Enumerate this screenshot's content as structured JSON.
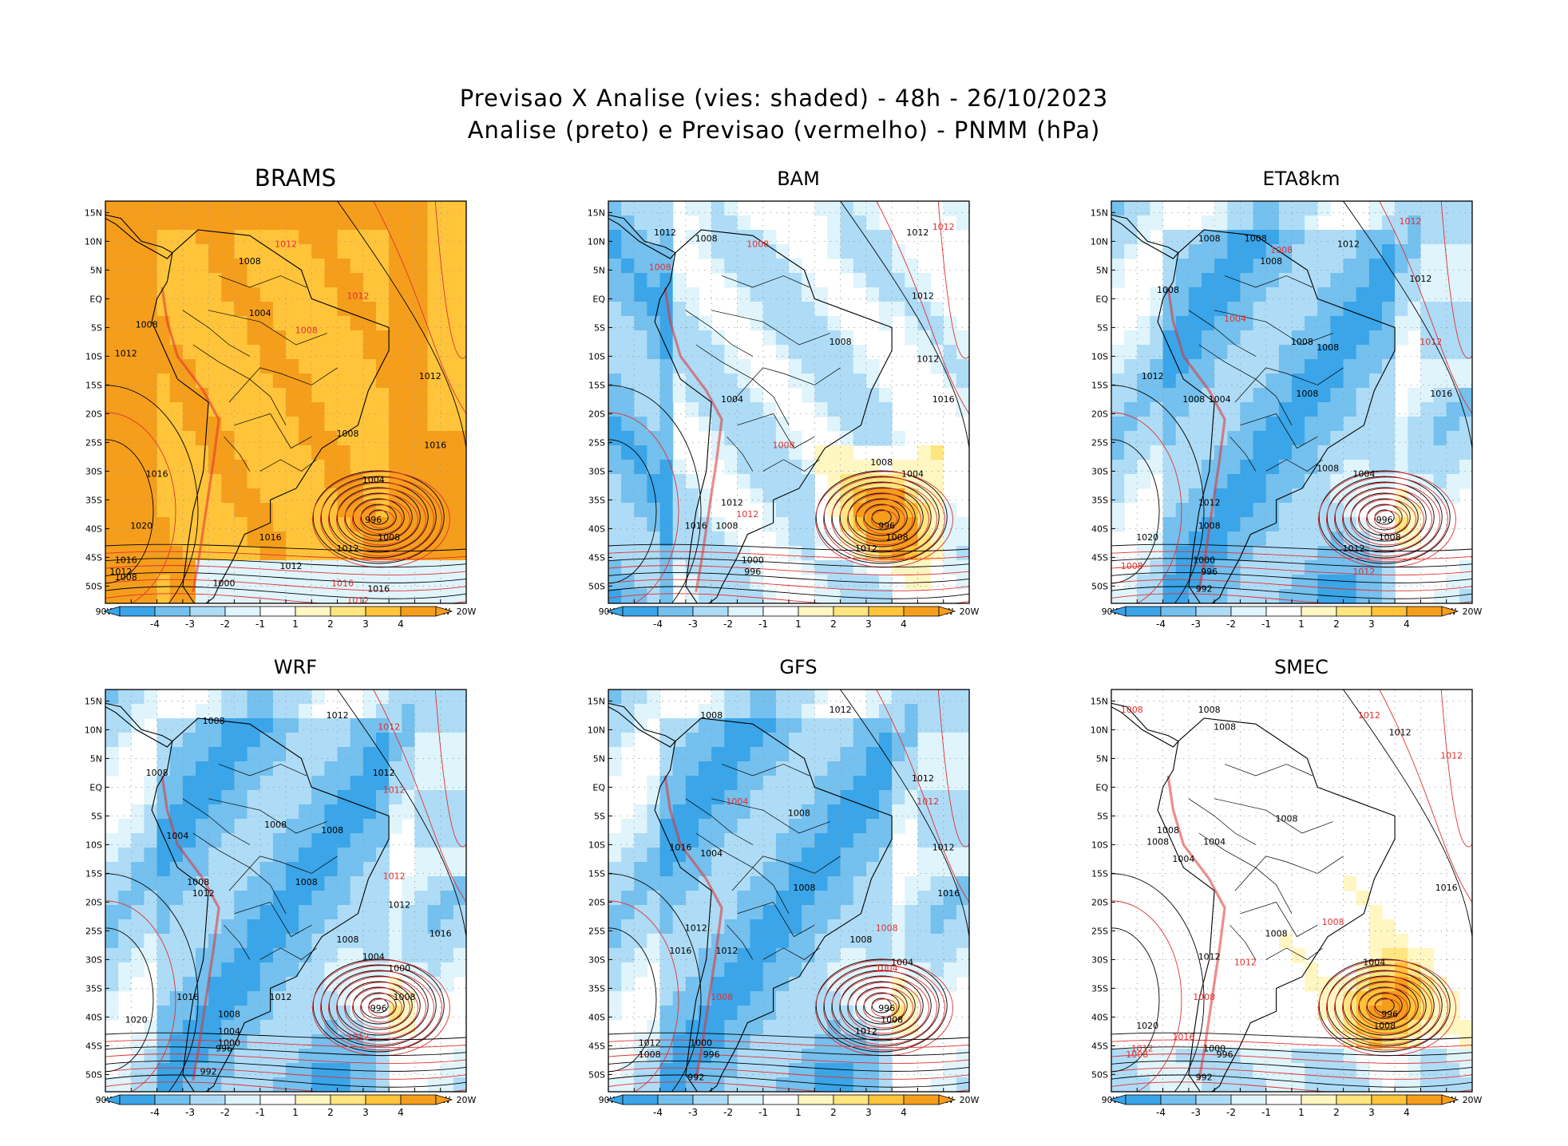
{
  "title_line1": "Previsao X Analise (vies: shaded) - 48h - 26/10/2023",
  "title_line2": "Analise (preto) e Previsao (vermelho) - PNMM (hPa)",
  "colors": {
    "neg4": "#3aa5e8",
    "neg3": "#74c0ee",
    "neg2": "#aedcf6",
    "neg1": "#dff4fb",
    "zero": "#ffffff",
    "pos1": "#fff6c2",
    "pos2": "#ffe580",
    "pos3": "#ffc43a",
    "pos4": "#f59e1c",
    "analysis_contour": "#000000",
    "forecast_contour": "#e03030"
  },
  "lat_ticks": [
    "15N",
    "10N",
    "5N",
    "EQ",
    "5S",
    "10S",
    "15S",
    "20S",
    "25S",
    "30S",
    "35S",
    "40S",
    "45S",
    "50S"
  ],
  "lon_ticks": [
    "90W",
    "85W",
    "80W",
    "75W",
    "70W",
    "65W",
    "60W",
    "55W",
    "50W",
    "45W",
    "40W",
    "35W",
    "30W",
    "25W",
    "20W"
  ],
  "colorbar_labels": [
    "-4",
    "-3",
    "-2",
    "-1",
    "1",
    "2",
    "3",
    "4"
  ],
  "panels": [
    {
      "name": "BRAMS",
      "bias": "warm",
      "labels": [
        {
          "t": "1008",
          "c": "k",
          "lon": -62,
          "lat": 6
        },
        {
          "t": "1004",
          "c": "k",
          "lon": -60,
          "lat": -3
        },
        {
          "t": "1008",
          "c": "k",
          "lon": -82,
          "lat": -5
        },
        {
          "t": "1012",
          "c": "k",
          "lon": -86,
          "lat": -10
        },
        {
          "t": "1008",
          "c": "r",
          "lon": -51,
          "lat": -6
        },
        {
          "t": "1012",
          "c": "r",
          "lon": -55,
          "lat": 9
        },
        {
          "t": "1012",
          "c": "r",
          "lon": -41,
          "lat": 0
        },
        {
          "t": "1012",
          "c": "k",
          "lon": -27,
          "lat": -14
        },
        {
          "t": "1016",
          "c": "k",
          "lon": -26,
          "lat": -26
        },
        {
          "t": "1008",
          "c": "k",
          "lon": -43,
          "lat": -24
        },
        {
          "t": "1004",
          "c": "k",
          "lon": -38,
          "lat": -32
        },
        {
          "t": "996",
          "c": "k",
          "lon": -38,
          "lat": -39
        },
        {
          "t": "1008",
          "c": "k",
          "lon": -35,
          "lat": -42
        },
        {
          "t": "1012",
          "c": "k",
          "lon": -43,
          "lat": -44
        },
        {
          "t": "1016",
          "c": "k",
          "lon": -80,
          "lat": -31
        },
        {
          "t": "1020",
          "c": "k",
          "lon": -83,
          "lat": -40
        },
        {
          "t": "1016",
          "c": "k",
          "lon": -86,
          "lat": -46
        },
        {
          "t": "1012",
          "c": "k",
          "lon": -87,
          "lat": -48
        },
        {
          "t": "1008",
          "c": "k",
          "lon": -86,
          "lat": -49
        },
        {
          "t": "1000",
          "c": "k",
          "lon": -67,
          "lat": -50
        },
        {
          "t": "1016",
          "c": "r",
          "lon": -44,
          "lat": -50
        },
        {
          "t": "1016",
          "c": "k",
          "lon": -37,
          "lat": -51
        },
        {
          "t": "1012",
          "c": "r",
          "lon": -41,
          "lat": -53
        },
        {
          "t": "1012",
          "c": "k",
          "lon": -54,
          "lat": -47
        },
        {
          "t": "1016",
          "c": "k",
          "lon": -58,
          "lat": -42
        }
      ]
    },
    {
      "name": "BAM",
      "bias": "mixed",
      "labels": [
        {
          "t": "1008",
          "c": "k",
          "lon": -71,
          "lat": 10
        },
        {
          "t": "1012",
          "c": "k",
          "lon": -79,
          "lat": 11
        },
        {
          "t": "1008",
          "c": "r",
          "lon": -61,
          "lat": 9
        },
        {
          "t": "1008",
          "c": "r",
          "lon": -80,
          "lat": 5
        },
        {
          "t": "1012",
          "c": "k",
          "lon": -30,
          "lat": 11
        },
        {
          "t": "1012",
          "c": "r",
          "lon": -25,
          "lat": 12
        },
        {
          "t": "1012",
          "c": "k",
          "lon": -29,
          "lat": 0
        },
        {
          "t": "1008",
          "c": "k",
          "lon": -45,
          "lat": -8
        },
        {
          "t": "1012",
          "c": "k",
          "lon": -28,
          "lat": -11
        },
        {
          "t": "1004",
          "c": "k",
          "lon": -66,
          "lat": -18
        },
        {
          "t": "1016",
          "c": "k",
          "lon": -25,
          "lat": -18
        },
        {
          "t": "1008",
          "c": "k",
          "lon": -37,
          "lat": -29
        },
        {
          "t": "1004",
          "c": "k",
          "lon": -31,
          "lat": -31
        },
        {
          "t": "996",
          "c": "k",
          "lon": -36,
          "lat": -40
        },
        {
          "t": "1008",
          "c": "k",
          "lon": -34,
          "lat": -42
        },
        {
          "t": "1012",
          "c": "k",
          "lon": -40,
          "lat": -44
        },
        {
          "t": "1012",
          "c": "k",
          "lon": -66,
          "lat": -36
        },
        {
          "t": "1008",
          "c": "k",
          "lon": -67,
          "lat": -40
        },
        {
          "t": "1000",
          "c": "k",
          "lon": -62,
          "lat": -46
        },
        {
          "t": "996",
          "c": "k",
          "lon": -62,
          "lat": -48
        },
        {
          "t": "1016",
          "c": "k",
          "lon": -73,
          "lat": -40
        },
        {
          "t": "1008",
          "c": "r",
          "lon": -56,
          "lat": -26
        },
        {
          "t": "1012",
          "c": "r",
          "lon": -63,
          "lat": -38
        }
      ]
    },
    {
      "name": "ETA8km",
      "bias": "cool",
      "labels": [
        {
          "t": "1008",
          "c": "k",
          "lon": -71,
          "lat": 10
        },
        {
          "t": "1008",
          "c": "k",
          "lon": -62,
          "lat": 10
        },
        {
          "t": "1012",
          "c": "k",
          "lon": -44,
          "lat": 9
        },
        {
          "t": "1012",
          "c": "r",
          "lon": -32,
          "lat": 13
        },
        {
          "t": "1008",
          "c": "r",
          "lon": -57,
          "lat": 8
        },
        {
          "t": "1012",
          "c": "k",
          "lon": -30,
          "lat": 3
        },
        {
          "t": "1008",
          "c": "k",
          "lon": -59,
          "lat": 6
        },
        {
          "t": "1008",
          "c": "k",
          "lon": -79,
          "lat": 1
        },
        {
          "t": "1004",
          "c": "r",
          "lon": -66,
          "lat": -4
        },
        {
          "t": "1008",
          "c": "k",
          "lon": -53,
          "lat": -8
        },
        {
          "t": "1008",
          "c": "k",
          "lon": -48,
          "lat": -9
        },
        {
          "t": "1012",
          "c": "r",
          "lon": -28,
          "lat": -8
        },
        {
          "t": "1012",
          "c": "k",
          "lon": -82,
          "lat": -14
        },
        {
          "t": "1008",
          "c": "k",
          "lon": -74,
          "lat": -18
        },
        {
          "t": "1004",
          "c": "k",
          "lon": -69,
          "lat": -18
        },
        {
          "t": "1008",
          "c": "k",
          "lon": -52,
          "lat": -17
        },
        {
          "t": "1016",
          "c": "k",
          "lon": -26,
          "lat": -17
        },
        {
          "t": "1008",
          "c": "k",
          "lon": -48,
          "lat": -30
        },
        {
          "t": "1004",
          "c": "k",
          "lon": -41,
          "lat": -31
        },
        {
          "t": "996",
          "c": "k",
          "lon": -37,
          "lat": -39
        },
        {
          "t": "1008",
          "c": "k",
          "lon": -36,
          "lat": -42
        },
        {
          "t": "1012",
          "c": "k",
          "lon": -43,
          "lat": -44
        },
        {
          "t": "1012",
          "c": "k",
          "lon": -71,
          "lat": -36
        },
        {
          "t": "1008",
          "c": "k",
          "lon": -71,
          "lat": -40
        },
        {
          "t": "1020",
          "c": "k",
          "lon": -83,
          "lat": -42
        },
        {
          "t": "1000",
          "c": "k",
          "lon": -72,
          "lat": -46
        },
        {
          "t": "996",
          "c": "k",
          "lon": -71,
          "lat": -48
        },
        {
          "t": "992",
          "c": "k",
          "lon": -72,
          "lat": -51
        },
        {
          "t": "1008",
          "c": "r",
          "lon": -86,
          "lat": -47
        },
        {
          "t": "1012",
          "c": "r",
          "lon": -41,
          "lat": -48
        }
      ]
    },
    {
      "name": "WRF",
      "bias": "cool",
      "labels": [
        {
          "t": "1012",
          "c": "k",
          "lon": -45,
          "lat": 12
        },
        {
          "t": "1012",
          "c": "r",
          "lon": -35,
          "lat": 10
        },
        {
          "t": "1008",
          "c": "k",
          "lon": -69,
          "lat": 11
        },
        {
          "t": "1012",
          "c": "k",
          "lon": -36,
          "lat": 2
        },
        {
          "t": "1012",
          "c": "r",
          "lon": -34,
          "lat": -1
        },
        {
          "t": "1008",
          "c": "k",
          "lon": -80,
          "lat": 2
        },
        {
          "t": "1008",
          "c": "k",
          "lon": -57,
          "lat": -7
        },
        {
          "t": "1008",
          "c": "k",
          "lon": -46,
          "lat": -8
        },
        {
          "t": "1004",
          "c": "k",
          "lon": -76,
          "lat": -9
        },
        {
          "t": "1008",
          "c": "k",
          "lon": -72,
          "lat": -17
        },
        {
          "t": "1012",
          "c": "k",
          "lon": -71,
          "lat": -19
        },
        {
          "t": "1008",
          "c": "k",
          "lon": -51,
          "lat": -17
        },
        {
          "t": "1012",
          "c": "r",
          "lon": -34,
          "lat": -16
        },
        {
          "t": "1012",
          "c": "k",
          "lon": -33,
          "lat": -21
        },
        {
          "t": "1016",
          "c": "k",
          "lon": -25,
          "lat": -26
        },
        {
          "t": "1008",
          "c": "k",
          "lon": -43,
          "lat": -27
        },
        {
          "t": "1004",
          "c": "k",
          "lon": -38,
          "lat": -30
        },
        {
          "t": "1000",
          "c": "k",
          "lon": -33,
          "lat": -32
        },
        {
          "t": "1008",
          "c": "k",
          "lon": -32,
          "lat": -37
        },
        {
          "t": "996",
          "c": "k",
          "lon": -37,
          "lat": -39
        },
        {
          "t": "1012",
          "c": "r",
          "lon": -41,
          "lat": -44
        },
        {
          "t": "1012",
          "c": "k",
          "lon": -56,
          "lat": -37
        },
        {
          "t": "1016",
          "c": "k",
          "lon": -74,
          "lat": -37
        },
        {
          "t": "1020",
          "c": "k",
          "lon": -84,
          "lat": -41
        },
        {
          "t": "1008",
          "c": "k",
          "lon": -66,
          "lat": -40
        },
        {
          "t": "1004",
          "c": "k",
          "lon": -66,
          "lat": -43
        },
        {
          "t": "1000",
          "c": "k",
          "lon": -66,
          "lat": -45
        },
        {
          "t": "996",
          "c": "k",
          "lon": -67,
          "lat": -46
        },
        {
          "t": "992",
          "c": "k",
          "lon": -70,
          "lat": -50
        }
      ]
    },
    {
      "name": "GFS",
      "bias": "cool",
      "labels": [
        {
          "t": "1008",
          "c": "k",
          "lon": -70,
          "lat": 12
        },
        {
          "t": "1012",
          "c": "k",
          "lon": -45,
          "lat": 13
        },
        {
          "t": "1012",
          "c": "k",
          "lon": -29,
          "lat": 1
        },
        {
          "t": "1012",
          "c": "r",
          "lon": -28,
          "lat": -3
        },
        {
          "t": "1004",
          "c": "r",
          "lon": -65,
          "lat": -3
        },
        {
          "t": "1008",
          "c": "k",
          "lon": -53,
          "lat": -5
        },
        {
          "t": "1012",
          "c": "k",
          "lon": -25,
          "lat": -11
        },
        {
          "t": "1004",
          "c": "k",
          "lon": -70,
          "lat": -12
        },
        {
          "t": "1016",
          "c": "k",
          "lon": -76,
          "lat": -11
        },
        {
          "t": "1008",
          "c": "k",
          "lon": -52,
          "lat": -18
        },
        {
          "t": "1016",
          "c": "k",
          "lon": -24,
          "lat": -19
        },
        {
          "t": "1008",
          "c": "k",
          "lon": -41,
          "lat": -27
        },
        {
          "t": "1008",
          "c": "r",
          "lon": -36,
          "lat": -25
        },
        {
          "t": "1004",
          "c": "k",
          "lon": -33,
          "lat": -31
        },
        {
          "t": "1004",
          "c": "r",
          "lon": -36,
          "lat": -32
        },
        {
          "t": "996",
          "c": "k",
          "lon": -36,
          "lat": -39
        },
        {
          "t": "1008",
          "c": "k",
          "lon": -35,
          "lat": -41
        },
        {
          "t": "1012",
          "c": "k",
          "lon": -40,
          "lat": -43
        },
        {
          "t": "1012",
          "c": "k",
          "lon": -73,
          "lat": -25
        },
        {
          "t": "1012",
          "c": "k",
          "lon": -67,
          "lat": -29
        },
        {
          "t": "1016",
          "c": "k",
          "lon": -76,
          "lat": -29
        },
        {
          "t": "1008",
          "c": "r",
          "lon": -68,
          "lat": -37
        },
        {
          "t": "1012",
          "c": "k",
          "lon": -82,
          "lat": -45
        },
        {
          "t": "1008",
          "c": "k",
          "lon": -82,
          "lat": -47
        },
        {
          "t": "1000",
          "c": "k",
          "lon": -72,
          "lat": -45
        },
        {
          "t": "996",
          "c": "k",
          "lon": -70,
          "lat": -47
        },
        {
          "t": "992",
          "c": "k",
          "lon": -73,
          "lat": -51
        }
      ]
    },
    {
      "name": "SMEC",
      "bias": "neutral",
      "labels": [
        {
          "t": "1008",
          "c": "r",
          "lon": -86,
          "lat": 13
        },
        {
          "t": "1008",
          "c": "k",
          "lon": -71,
          "lat": 13
        },
        {
          "t": "1008",
          "c": "k",
          "lon": -68,
          "lat": 10
        },
        {
          "t": "1012",
          "c": "r",
          "lon": -40,
          "lat": 12
        },
        {
          "t": "1012",
          "c": "k",
          "lon": -34,
          "lat": 9
        },
        {
          "t": "1012",
          "c": "r",
          "lon": -24,
          "lat": 5
        },
        {
          "t": "1008",
          "c": "k",
          "lon": -56,
          "lat": -6
        },
        {
          "t": "1008",
          "c": "k",
          "lon": -79,
          "lat": -8
        },
        {
          "t": "1004",
          "c": "k",
          "lon": -70,
          "lat": -10
        },
        {
          "t": "1008",
          "c": "k",
          "lon": -81,
          "lat": -10
        },
        {
          "t": "1004",
          "c": "k",
          "lon": -76,
          "lat": -13
        },
        {
          "t": "1016",
          "c": "k",
          "lon": -25,
          "lat": -18
        },
        {
          "t": "1008",
          "c": "r",
          "lon": -47,
          "lat": -24
        },
        {
          "t": "1008",
          "c": "k",
          "lon": -58,
          "lat": -26
        },
        {
          "t": "1004",
          "c": "k",
          "lon": -39,
          "lat": -31
        },
        {
          "t": "1012",
          "c": "k",
          "lon": -71,
          "lat": -30
        },
        {
          "t": "1012",
          "c": "r",
          "lon": -64,
          "lat": -31
        },
        {
          "t": "1008",
          "c": "r",
          "lon": -72,
          "lat": -37
        },
        {
          "t": "996",
          "c": "k",
          "lon": -36,
          "lat": -40
        },
        {
          "t": "1008",
          "c": "k",
          "lon": -37,
          "lat": -42
        },
        {
          "t": "1020",
          "c": "k",
          "lon": -83,
          "lat": -42
        },
        {
          "t": "1016",
          "c": "r",
          "lon": -76,
          "lat": -44
        },
        {
          "t": "1012",
          "c": "r",
          "lon": -84,
          "lat": -46
        },
        {
          "t": "1008",
          "c": "r",
          "lon": -85,
          "lat": -47
        },
        {
          "t": "1000",
          "c": "k",
          "lon": -70,
          "lat": -46
        },
        {
          "t": "996",
          "c": "k",
          "lon": -68,
          "lat": -47
        },
        {
          "t": "992",
          "c": "k",
          "lon": -72,
          "lat": -51
        }
      ]
    }
  ]
}
